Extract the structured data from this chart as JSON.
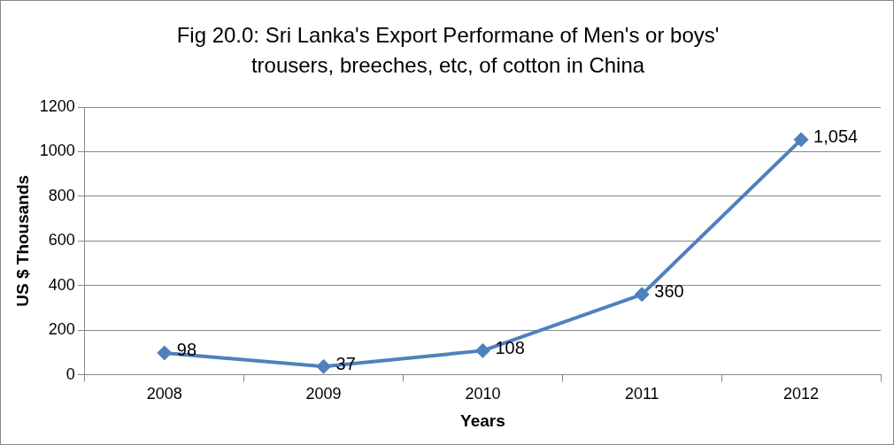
{
  "chart_data": {
    "type": "line",
    "title": "Fig 20.0: Sri Lanka's Export Performane of Men's or boys' trousers, breeches, etc, of cotton in China",
    "xlabel": "Years",
    "ylabel": "US $ Thousands",
    "categories": [
      "2008",
      "2009",
      "2010",
      "2011",
      "2012"
    ],
    "series": [
      {
        "color": "#4f81bd",
        "values": [
          98,
          37,
          108,
          360,
          1054
        ],
        "value_labels": [
          "98",
          "37",
          "108",
          "360",
          "1,054"
        ]
      }
    ],
    "ylim": [
      0,
      1200
    ],
    "yticks": [
      0,
      200,
      400,
      600,
      800,
      1000,
      1200
    ],
    "grid": "y",
    "legend": false,
    "marker": "diamond",
    "line_style": "solid"
  }
}
